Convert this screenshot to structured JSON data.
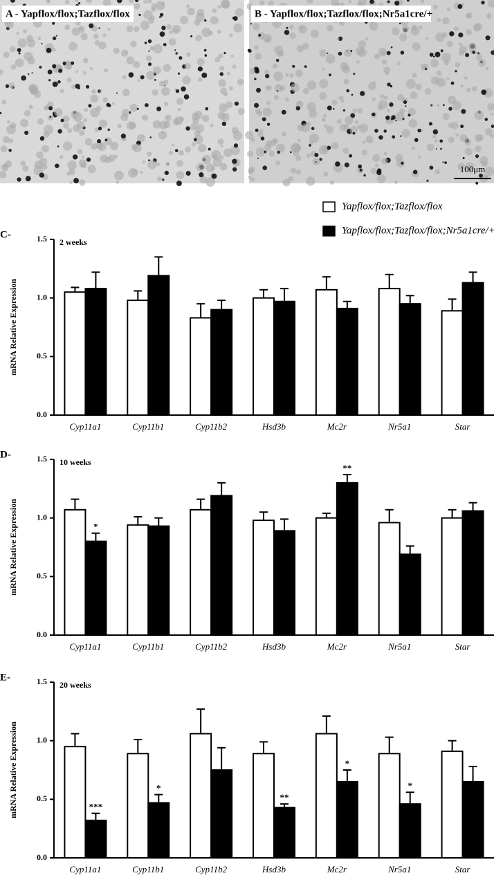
{
  "panels": [
    {
      "label": "A - Yapflox/flox;Tazflox/flox"
    },
    {
      "label": "B - Yapflox/flox;Tazflox/flox;Nr5a1cre/+",
      "scale_bar": "100μm"
    }
  ],
  "chart_data": [
    {
      "type": "bar",
      "panel": "C-",
      "subtitle": "2 weeks",
      "ylabel": "mRNA Relative Expression",
      "categories": [
        "Cyp11a1",
        "Cyp11b1",
        "Cyp11b2",
        "Hsd3b",
        "Mc2r",
        "Nr5a1",
        "Star"
      ],
      "series": [
        {
          "name": "Yapflox/flox;Tazflox/flox",
          "color": "#ffffff",
          "values": [
            1.05,
            0.98,
            0.83,
            1.0,
            1.07,
            1.08,
            0.89
          ],
          "errors": [
            0.04,
            0.08,
            0.12,
            0.07,
            0.11,
            0.12,
            0.1
          ]
        },
        {
          "name": "Yapflox/flox;Tazflox/flox;Nr5a1cre/+",
          "color": "#000000",
          "values": [
            1.08,
            1.19,
            0.9,
            0.97,
            0.91,
            0.95,
            1.13
          ],
          "errors": [
            0.14,
            0.16,
            0.08,
            0.11,
            0.06,
            0.07,
            0.09
          ]
        }
      ],
      "ylim": [
        0,
        1.5
      ],
      "yticks": [
        {
          "value": 0,
          "label": "0.0"
        },
        {
          "value": 0.5,
          "label": "0.5"
        },
        {
          "value": 1,
          "label": "1.0"
        },
        {
          "value": 1.5,
          "label": "1.5"
        }
      ]
    },
    {
      "type": "bar",
      "panel": "D-",
      "subtitle": "10 weeks",
      "ylabel": "mRNA Relative Expression",
      "categories": [
        "Cyp11a1",
        "Cyp11b1",
        "Cyp11b2",
        "Hsd3b",
        "Mc2r",
        "Nr5a1",
        "Star"
      ],
      "series": [
        {
          "name": "Yapflox/flox;Tazflox/flox",
          "color": "#ffffff",
          "values": [
            1.07,
            0.94,
            1.07,
            0.98,
            1.0,
            0.96,
            1.0
          ],
          "errors": [
            0.09,
            0.07,
            0.09,
            0.07,
            0.04,
            0.11,
            0.07
          ]
        },
        {
          "name": "Yapflox/flox;Tazflox/flox;Nr5a1cre/+",
          "color": "#000000",
          "values": [
            0.8,
            0.93,
            1.19,
            0.89,
            1.3,
            0.69,
            1.06
          ],
          "errors": [
            0.07,
            0.07,
            0.11,
            0.1,
            0.07,
            0.07,
            0.07
          ],
          "significance": [
            "*",
            null,
            null,
            null,
            "**",
            null,
            null
          ]
        }
      ],
      "ylim": [
        0,
        1.5
      ],
      "yticks": [
        {
          "value": 0,
          "label": "0.0"
        },
        {
          "value": 0.5,
          "label": "0.5"
        },
        {
          "value": 1,
          "label": "1.0"
        },
        {
          "value": 1.5,
          "label": "1.5"
        }
      ]
    },
    {
      "type": "bar",
      "panel": "E-",
      "subtitle": "20 weeks",
      "ylabel": "mRNA Relative Expression",
      "categories": [
        "Cyp11a1",
        "Cyp11b1",
        "Cyp11b2",
        "Hsd3b",
        "Mc2r",
        "Nr5a1",
        "Star"
      ],
      "series": [
        {
          "name": "Yapflox/flox;Tazflox/flox",
          "color": "#ffffff",
          "values": [
            0.95,
            0.89,
            1.06,
            0.89,
            1.06,
            0.89,
            0.91
          ],
          "errors": [
            0.11,
            0.12,
            0.21,
            0.1,
            0.15,
            0.14,
            0.09
          ]
        },
        {
          "name": "Yapflox/flox;Tazflox/flox;Nr5a1cre/+",
          "color": "#000000",
          "values": [
            0.32,
            0.47,
            0.75,
            0.43,
            0.65,
            0.46,
            0.65
          ],
          "errors": [
            0.06,
            0.07,
            0.19,
            0.03,
            0.1,
            0.1,
            0.13
          ],
          "significance": [
            "***",
            "*",
            null,
            "**",
            "*",
            "*",
            null
          ]
        }
      ],
      "ylim": [
        0,
        1.5
      ],
      "yticks": [
        {
          "value": 0,
          "label": "0.0"
        },
        {
          "value": 0.5,
          "label": "0.5"
        },
        {
          "value": 1,
          "label": "1.0"
        },
        {
          "value": 1.5,
          "label": "1.5"
        }
      ]
    }
  ]
}
